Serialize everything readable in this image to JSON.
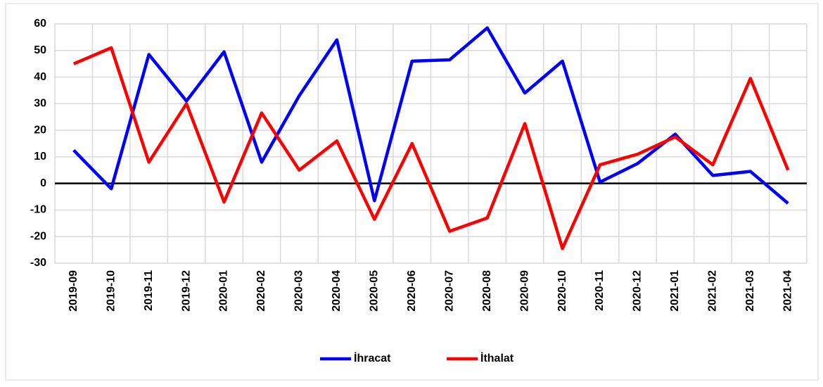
{
  "chart_data": {
    "type": "line",
    "categories": [
      "2019-09",
      "2019-10",
      "2019-11",
      "2019-12",
      "2020-01",
      "2020-02",
      "2020-03",
      "2020-04",
      "2020-05",
      "2020-06",
      "2020-07",
      "2020-08",
      "2020-09",
      "2020-10",
      "2020-11",
      "2020-12",
      "2021-01",
      "2021-02",
      "2021-03",
      "2021-04"
    ],
    "series": [
      {
        "name": "İhracat",
        "color": "#0000ff",
        "values": [
          12.5,
          -2,
          48.5,
          31,
          49.5,
          8,
          33,
          54,
          -6.5,
          46,
          46.5,
          58.5,
          34,
          46,
          0.5,
          7.5,
          18.5,
          3,
          4.5,
          -7.5
        ]
      },
      {
        "name": "İthalat",
        "color": "#ff0000",
        "values": [
          45,
          51,
          8,
          30,
          -7,
          26.5,
          5,
          16,
          -13.5,
          15,
          -18,
          -13,
          22.5,
          -24.5,
          7,
          11,
          17.5,
          7,
          39.5,
          5
        ]
      }
    ],
    "ylim": [
      -30,
      60
    ],
    "yticks": [
      -30,
      -20,
      -10,
      0,
      10,
      20,
      30,
      40,
      50,
      60
    ],
    "grid": true,
    "legend": "bottom"
  }
}
